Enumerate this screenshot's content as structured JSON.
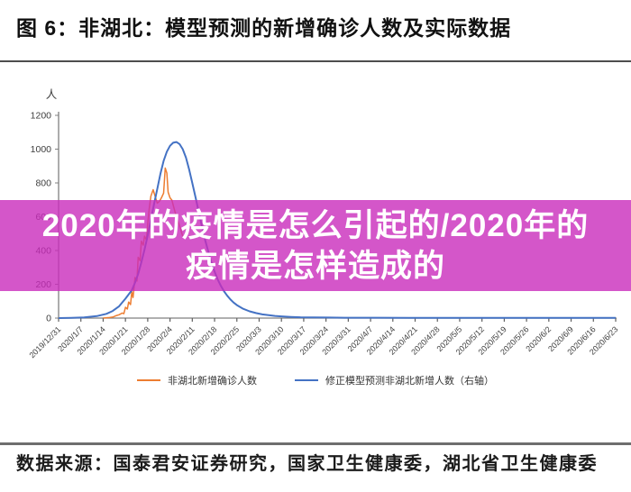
{
  "figure": {
    "title": "图 6：非湖北：模型预测的新增确诊人数及实际数据"
  },
  "overlay": {
    "line1": "2020年的疫情是怎么引起的/2020年的",
    "line2": "疫情是怎样造成的",
    "background_color": "#c92cbc",
    "text_color": "#ffffff"
  },
  "source": {
    "label": "数据来源：国泰君安证券研究，国家卫生健康委，湖北省卫生健康委"
  },
  "chart_data": {
    "type": "line",
    "title": "",
    "ylabel": "人",
    "xlabel": "",
    "ylim": [
      0,
      1200
    ],
    "yticks": [
      0,
      200,
      400,
      600,
      800,
      1000,
      1200
    ],
    "grid": false,
    "legend_position": "bottom",
    "x_tick_labels": [
      "2019/12/31",
      "2020/1/7",
      "2020/1/14",
      "2020/1/21",
      "2020/1/28",
      "2020/2/4",
      "2020/2/11",
      "2020/2/18",
      "2020/2/25",
      "2020/3/3",
      "2020/3/10",
      "2020/3/17",
      "2020/3/24",
      "2020/3/31",
      "2020/4/7",
      "2020/4/14",
      "2020/4/21",
      "2020/4/28",
      "2020/5/5",
      "2020/5/12",
      "2020/5/19",
      "2020/5/26",
      "2020/6/2",
      "2020/6/9",
      "2020/6/16",
      "2020/6/23"
    ],
    "x_note": "points are [days since 2019/12/31, value]; ticks weekly",
    "series": [
      {
        "name": "非湖北新增确诊人数",
        "color": "#ED7D31",
        "points": [
          [
            14,
            0
          ],
          [
            16,
            3
          ],
          [
            17,
            6
          ],
          [
            18,
            14
          ],
          [
            19,
            20
          ],
          [
            20,
            30
          ],
          [
            20.5,
            26
          ],
          [
            21,
            64
          ],
          [
            21.6,
            54
          ],
          [
            22,
            95
          ],
          [
            22.6,
            80
          ],
          [
            23,
            155
          ],
          [
            23.4,
            122
          ],
          [
            24,
            240
          ],
          [
            24.6,
            220
          ],
          [
            25,
            360
          ],
          [
            25.6,
            340
          ],
          [
            26,
            455
          ],
          [
            26.6,
            432
          ],
          [
            27,
            485
          ],
          [
            27.6,
            462
          ],
          [
            28,
            560
          ],
          [
            28.5,
            650
          ],
          [
            29,
            722
          ],
          [
            29.7,
            760
          ],
          [
            30.3,
            722
          ],
          [
            31,
            680
          ],
          [
            31.7,
            692
          ],
          [
            32.3,
            712
          ],
          [
            33,
            740
          ],
          [
            33.5,
            888
          ],
          [
            34,
            858
          ],
          [
            34.4,
            745
          ],
          [
            35,
            712
          ],
          [
            35.6,
            698
          ],
          [
            36.2,
            655
          ],
          [
            37,
            600
          ],
          [
            38,
            545
          ],
          [
            39,
            485
          ]
        ]
      },
      {
        "name": "修正模型预测非湖北新增人数（右轴）",
        "color": "#4472C4",
        "points": [
          [
            0,
            0
          ],
          [
            4,
            1
          ],
          [
            8,
            4
          ],
          [
            12,
            12
          ],
          [
            15,
            25
          ],
          [
            17,
            42
          ],
          [
            19,
            70
          ],
          [
            21,
            115
          ],
          [
            23,
            165
          ],
          [
            24,
            210
          ],
          [
            25,
            262
          ],
          [
            26,
            330
          ],
          [
            27,
            405
          ],
          [
            28,
            490
          ],
          [
            29,
            580
          ],
          [
            30,
            675
          ],
          [
            31,
            765
          ],
          [
            32,
            855
          ],
          [
            33,
            930
          ],
          [
            34,
            985
          ],
          [
            35,
            1020
          ],
          [
            36,
            1038
          ],
          [
            37,
            1042
          ],
          [
            38,
            1030
          ],
          [
            39,
            1000
          ],
          [
            40,
            950
          ],
          [
            41,
            880
          ],
          [
            42,
            800
          ],
          [
            43,
            715
          ],
          [
            44,
            630
          ],
          [
            45,
            545
          ],
          [
            46,
            465
          ],
          [
            47,
            395
          ],
          [
            48,
            330
          ],
          [
            49,
            275
          ],
          [
            50,
            228
          ],
          [
            51,
            190
          ],
          [
            52,
            158
          ],
          [
            53,
            132
          ],
          [
            54,
            110
          ],
          [
            55,
            92
          ],
          [
            56,
            77
          ],
          [
            58,
            55
          ],
          [
            60,
            40
          ],
          [
            62,
            30
          ],
          [
            64,
            22
          ],
          [
            66,
            17
          ],
          [
            68,
            13
          ],
          [
            70,
            10
          ],
          [
            73,
            7
          ],
          [
            76,
            5
          ],
          [
            80,
            4
          ],
          [
            85,
            3
          ],
          [
            90,
            2
          ],
          [
            100,
            2
          ],
          [
            110,
            1
          ],
          [
            125,
            1
          ],
          [
            140,
            1
          ],
          [
            155,
            1
          ],
          [
            168,
            1
          ],
          [
            175,
            1
          ]
        ]
      }
    ]
  }
}
